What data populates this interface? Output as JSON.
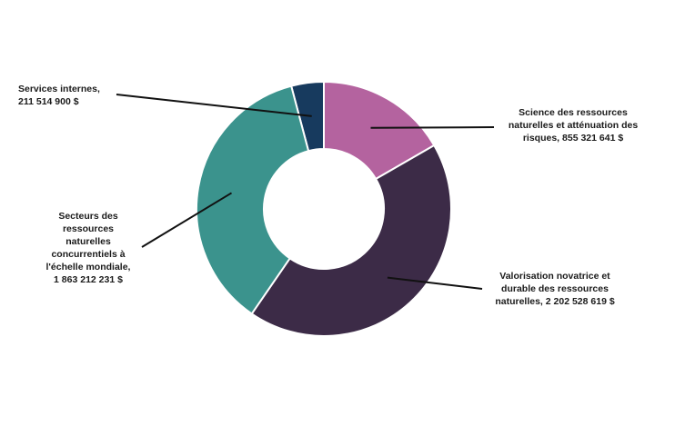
{
  "chart_data": {
    "type": "pie",
    "variant": "donut",
    "title": "",
    "slices": [
      {
        "label_lines": [
          "Services internes,",
          "211 514 900 $"
        ],
        "value": 211514900,
        "color": "#173a5e"
      },
      {
        "label_lines": [
          "Science des ressources",
          "naturelles et atténuation des",
          "risques,  855 321 641 $"
        ],
        "value": 855321641,
        "color": "#b4639f"
      },
      {
        "label_lines": [
          "Valorisation novatrice et",
          "durable des ressources",
          "naturelles, 2 202 528 619 $"
        ],
        "value": 2202528619,
        "color": "#3c2b47"
      },
      {
        "label_lines": [
          "Secteurs des",
          "ressources",
          "naturelles",
          "concurrentiels à",
          "l'échelle mondiale,",
          "1 863 212 231 $"
        ],
        "value": 1863212231,
        "color": "#3b938d"
      }
    ],
    "legend": "none"
  }
}
